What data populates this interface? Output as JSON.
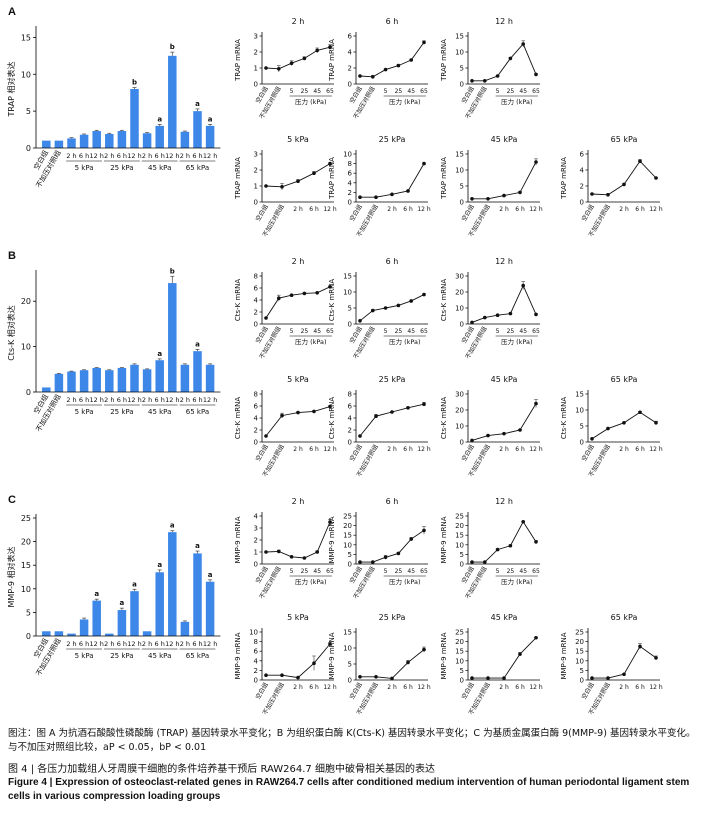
{
  "panels": {
    "A": "A",
    "B": "B",
    "C": "C"
  },
  "note": "图注：图 A 为抗酒石酸酸性磷酸酶 (TRAP) 基因转录水平变化；B 为组织蛋白酶 K(Cts-K) 基因转录水平变化；C 为基质金属蛋白酶 9(MMP-9) 基因转录水平变化。与不加压对照组比较，aP < 0.05，bP < 0.01",
  "title_cn": "图 4 | 各压力加载组人牙周膜干细胞的条件培养基干预后 RAW264.7 细胞中破骨相关基因的表达",
  "title_en": "Figure 4 | Expression of osteoclast-related genes in RAW264.7 cells after conditioned medium intervention of human periodontal ligament stem cells in various compression loading groups",
  "bar_style": {
    "bar_color": "#3d87e8",
    "axis_color": "#000000"
  },
  "chart_data": [
    {
      "type": "bar",
      "panel": "A",
      "ylabel": "TRAP 相对表达",
      "ylim": [
        0,
        16
      ],
      "yticks": [
        0,
        5,
        10,
        15
      ],
      "control_labels": [
        "空白组",
        "不加压对照组"
      ],
      "time_labels": [
        "2 h",
        "6 h",
        "12 h"
      ],
      "group_labels": [
        "5 kPa",
        "25 kPa",
        "45 kPa",
        "65 kPa"
      ],
      "values": [
        1.0,
        1.0,
        1.3,
        1.8,
        2.3,
        1.9,
        2.3,
        8.0,
        2.0,
        3.0,
        12.5,
        2.2,
        5.0,
        3.0
      ],
      "errors": [
        0.05,
        0.05,
        0.1,
        0.1,
        0.1,
        0.1,
        0.1,
        0.2,
        0.1,
        0.2,
        0.5,
        0.1,
        0.3,
        0.2
      ],
      "sig": [
        "",
        "",
        "",
        "",
        "",
        "",
        "",
        "b",
        "",
        "a",
        "b",
        "",
        "a",
        "a"
      ]
    },
    {
      "type": "bar",
      "panel": "B",
      "ylabel": "Cts-K 相对表达",
      "ylim": [
        0,
        26
      ],
      "yticks": [
        0,
        10,
        20
      ],
      "control_labels": [
        "空白组",
        "不加压对照组"
      ],
      "time_labels": [
        "2 h",
        "6 h",
        "12 h"
      ],
      "group_labels": [
        "5 kPa",
        "25 kPa",
        "45 kPa",
        "65 kPa"
      ],
      "values": [
        1.0,
        4.0,
        4.5,
        4.8,
        5.3,
        4.8,
        5.3,
        6.0,
        5.0,
        7.0,
        24.0,
        6.0,
        9.0,
        6.0
      ],
      "errors": [
        0.05,
        0.1,
        0.1,
        0.1,
        0.1,
        0.1,
        0.1,
        0.2,
        0.1,
        0.3,
        1.5,
        0.2,
        0.4,
        0.2
      ],
      "sig": [
        "",
        "",
        "",
        "",
        "",
        "",
        "",
        "",
        "",
        "a",
        "b",
        "",
        "a",
        ""
      ]
    },
    {
      "type": "bar",
      "panel": "C",
      "ylabel": "MMP-9 相对表达",
      "ylim": [
        0,
        25
      ],
      "yticks": [
        0,
        5,
        10,
        15,
        20,
        25
      ],
      "control_labels": [
        "空白组",
        "不加压对照组"
      ],
      "time_labels": [
        "2 h",
        "6 h",
        "12 h"
      ],
      "group_labels": [
        "5 kPa",
        "25 kPa",
        "45 kPa",
        "65 kPa"
      ],
      "values": [
        1.0,
        1.0,
        0.5,
        3.5,
        7.5,
        0.5,
        5.5,
        9.5,
        1.0,
        13.5,
        22.0,
        3.0,
        17.5,
        11.5
      ],
      "errors": [
        0.05,
        0.05,
        0.05,
        0.3,
        0.3,
        0.05,
        0.4,
        0.4,
        0.05,
        0.5,
        0.3,
        0.2,
        0.5,
        0.4
      ],
      "sig": [
        "",
        "",
        "",
        "",
        "a",
        "",
        "a",
        "a",
        "",
        "a",
        "a",
        "",
        "a",
        "a"
      ]
    },
    {
      "type": "line",
      "panel": "A",
      "title": "2 h",
      "ylabel": "TRAP mRNA",
      "x": [
        "空白组",
        "不加压对照组",
        "5",
        "25",
        "45",
        "65"
      ],
      "xlabel": "压力 (kPa)",
      "ylim": [
        0,
        3
      ],
      "yticks": [
        0,
        1,
        2,
        3
      ],
      "values": [
        1.0,
        0.95,
        1.3,
        1.6,
        2.1,
        2.3
      ],
      "errors": [
        0.05,
        0.2,
        0.15,
        0.1,
        0.15,
        0.15
      ]
    },
    {
      "type": "line",
      "panel": "A",
      "title": "6 h",
      "ylabel": "TRAP mRNA",
      "x": [
        "空白组",
        "不加压对照组",
        "5",
        "25",
        "45",
        "65"
      ],
      "xlabel": "压力 (kPa)",
      "ylim": [
        0,
        6
      ],
      "yticks": [
        0,
        2,
        4,
        6
      ],
      "values": [
        1.0,
        0.9,
        1.8,
        2.3,
        3.0,
        5.2
      ],
      "errors": [
        0.05,
        0.15,
        0.1,
        0.1,
        0.1,
        0.2
      ]
    },
    {
      "type": "line",
      "panel": "A",
      "title": "12 h",
      "ylabel": "TRAP mRNA",
      "x": [
        "空白组",
        "不加压对照组",
        "5",
        "25",
        "45",
        "65"
      ],
      "xlabel": "压力 (kPa)",
      "ylim": [
        0,
        15
      ],
      "yticks": [
        0,
        5,
        10,
        15
      ],
      "values": [
        1.0,
        1.0,
        2.5,
        8.0,
        12.5,
        3.0
      ],
      "errors": [
        0.05,
        0.1,
        0.1,
        0.3,
        1.0,
        0.2
      ]
    },
    {
      "type": "line",
      "panel": "A",
      "title": "5 kPa",
      "ylabel": "TRAP mRNA",
      "x": [
        "空白组",
        "不加压对照组",
        "2 h",
        "6 h",
        "12 h"
      ],
      "ylim": [
        0,
        3
      ],
      "yticks": [
        0,
        1,
        2,
        3
      ],
      "values": [
        1.0,
        0.95,
        1.3,
        1.8,
        2.4
      ],
      "errors": [
        0.05,
        0.2,
        0.1,
        0.1,
        0.05
      ]
    },
    {
      "type": "line",
      "panel": "A",
      "title": "25 kPa",
      "ylabel": "TRAP mRNA",
      "x": [
        "空白组",
        "不加压对照组",
        "2 h",
        "6 h",
        "12 h"
      ],
      "ylim": [
        0,
        10
      ],
      "yticks": [
        0,
        2,
        4,
        6,
        8,
        10
      ],
      "values": [
        1.0,
        1.0,
        1.6,
        2.3,
        8.0
      ],
      "errors": [
        0.05,
        0.1,
        0.1,
        0.1,
        0.1
      ]
    },
    {
      "type": "line",
      "panel": "A",
      "title": "45 kPa",
      "ylabel": "TRAP mRNA",
      "x": [
        "空白组",
        "不加压对照组",
        "2 h",
        "6 h",
        "12 h"
      ],
      "ylim": [
        0,
        15
      ],
      "yticks": [
        0,
        5,
        10,
        15
      ],
      "values": [
        1.0,
        1.0,
        2.0,
        3.0,
        12.5
      ],
      "errors": [
        0.05,
        0.1,
        0.1,
        0.2,
        1.0
      ]
    },
    {
      "type": "line",
      "panel": "A",
      "title": "65 kPa",
      "ylabel": "TRAP mRNA",
      "x": [
        "空白组",
        "不加压对照组",
        "2 h",
        "6 h",
        "12 h"
      ],
      "ylim": [
        0,
        6
      ],
      "yticks": [
        0,
        2,
        4,
        6
      ],
      "values": [
        1.0,
        0.9,
        2.2,
        5.1,
        3.0
      ],
      "errors": [
        0.05,
        0.15,
        0.1,
        0.2,
        0.1
      ]
    },
    {
      "type": "line",
      "panel": "B",
      "title": "2 h",
      "ylabel": "Cts-K mRNA",
      "x": [
        "空白组",
        "不加压对照组",
        "5",
        "25",
        "45",
        "65"
      ],
      "xlabel": "压力 (kPa)",
      "ylim": [
        0,
        8
      ],
      "yticks": [
        0,
        2,
        4,
        6,
        8
      ],
      "values": [
        1.0,
        4.3,
        4.8,
        5.1,
        5.2,
        6.2
      ],
      "errors": [
        0.05,
        0.5,
        0.1,
        0.1,
        0.1,
        0.1
      ]
    },
    {
      "type": "line",
      "panel": "B",
      "title": "6 h",
      "ylabel": "Cts-K mRNA",
      "x": [
        "空白组",
        "不加压对照组",
        "5",
        "25",
        "45",
        "65"
      ],
      "xlabel": "压力 (kPa)",
      "ylim": [
        0,
        15
      ],
      "yticks": [
        0,
        5,
        10,
        15
      ],
      "values": [
        1.0,
        4.2,
        5.0,
        5.8,
        7.2,
        9.2
      ],
      "errors": [
        0.05,
        0.3,
        0.1,
        0.1,
        0.1,
        0.2
      ]
    },
    {
      "type": "line",
      "panel": "B",
      "title": "12 h",
      "ylabel": "Cts-K mRNA",
      "x": [
        "空白组",
        "不加压对照组",
        "5",
        "25",
        "45",
        "65"
      ],
      "xlabel": "压力 (kPa)",
      "ylim": [
        0,
        30
      ],
      "yticks": [
        0,
        10,
        20,
        30
      ],
      "values": [
        1.0,
        4.0,
        5.5,
        6.5,
        24.0,
        6.0
      ],
      "errors": [
        0.05,
        0.2,
        0.2,
        0.2,
        2.5,
        0.3
      ]
    },
    {
      "type": "line",
      "panel": "B",
      "title": "5 kPa",
      "ylabel": "Cts-K mRNA",
      "x": [
        "空白组",
        "不加压对照组",
        "2 h",
        "6 h",
        "12 h"
      ],
      "ylim": [
        0,
        8
      ],
      "yticks": [
        0,
        2,
        4,
        6,
        8
      ],
      "values": [
        1.0,
        4.4,
        4.9,
        5.1,
        5.9
      ],
      "errors": [
        0.05,
        0.4,
        0.1,
        0.1,
        0.1
      ]
    },
    {
      "type": "line",
      "panel": "B",
      "title": "25 kPa",
      "ylabel": "Cts-K mRNA",
      "x": [
        "空白组",
        "不加压对照组",
        "2 h",
        "6 h",
        "12 h"
      ],
      "ylim": [
        0,
        8
      ],
      "yticks": [
        0,
        2,
        4,
        6,
        8
      ],
      "values": [
        1.0,
        4.3,
        5.0,
        5.7,
        6.3
      ],
      "errors": [
        0.05,
        0.3,
        0.1,
        0.1,
        0.3
      ]
    },
    {
      "type": "line",
      "panel": "B",
      "title": "45 kPa",
      "ylabel": "Cts-K mRNA",
      "x": [
        "空白组",
        "不加压对照组",
        "2 h",
        "6 h",
        "12 h"
      ],
      "ylim": [
        0,
        30
      ],
      "yticks": [
        0,
        10,
        20,
        30
      ],
      "values": [
        1.0,
        4.0,
        5.2,
        7.5,
        24.0
      ],
      "errors": [
        0.05,
        0.2,
        0.2,
        0.3,
        2.5
      ]
    },
    {
      "type": "line",
      "panel": "B",
      "title": "65 kPa",
      "ylabel": "Cts-K mRNA",
      "x": [
        "空白组",
        "不加压对照组",
        "2 h",
        "6 h",
        "12 h"
      ],
      "ylim": [
        0,
        15
      ],
      "yticks": [
        0,
        5,
        10,
        15
      ],
      "values": [
        1.0,
        4.2,
        6.0,
        9.3,
        6.0
      ],
      "errors": [
        0.05,
        0.3,
        0.2,
        0.3,
        0.5
      ]
    },
    {
      "type": "line",
      "panel": "C",
      "title": "2 h",
      "ylabel": "MMP-9 mRNA",
      "x": [
        "空白组",
        "不加压对照组",
        "5",
        "25",
        "45",
        "65"
      ],
      "xlabel": "压力 (kPa)",
      "ylim": [
        0,
        4
      ],
      "yticks": [
        0,
        1,
        2,
        3,
        4
      ],
      "values": [
        1.0,
        1.05,
        0.6,
        0.5,
        1.0,
        3.5
      ],
      "errors": [
        0.05,
        0.1,
        0.05,
        0.05,
        0.1,
        0.2
      ]
    },
    {
      "type": "line",
      "panel": "C",
      "title": "6 h",
      "ylabel": "MMP-9 mRNA",
      "x": [
        "空白组",
        "不加压对照组",
        "5",
        "25",
        "45",
        "65"
      ],
      "xlabel": "压力 (kPa)",
      "ylim": [
        0,
        25
      ],
      "yticks": [
        0,
        5,
        10,
        15,
        20,
        25
      ],
      "values": [
        1.0,
        1.0,
        3.5,
        5.5,
        13.0,
        17.5
      ],
      "errors": [
        0.05,
        0.05,
        1.0,
        0.5,
        0.8,
        2.0
      ]
    },
    {
      "type": "line",
      "panel": "C",
      "title": "12 h",
      "ylabel": "MMP-9 mRNA",
      "x": [
        "空白组",
        "不加压对照组",
        "5",
        "25",
        "45",
        "65"
      ],
      "xlabel": "压力 (kPa)",
      "ylim": [
        0,
        25
      ],
      "yticks": [
        0,
        5,
        10,
        15,
        20,
        25
      ],
      "values": [
        1.0,
        1.0,
        7.5,
        9.5,
        22.0,
        11.5
      ],
      "errors": [
        0.05,
        0.05,
        0.3,
        0.5,
        0.3,
        0.8
      ]
    },
    {
      "type": "line",
      "panel": "C",
      "title": "5 kPa",
      "ylabel": "MMP-9 mRNA",
      "x": [
        "空白组",
        "不加压对照组",
        "2 h",
        "6 h",
        "12 h"
      ],
      "ylim": [
        0,
        10
      ],
      "yticks": [
        0,
        2,
        4,
        6,
        8,
        10
      ],
      "values": [
        1.0,
        1.0,
        0.5,
        3.5,
        7.5
      ],
      "errors": [
        0.05,
        0.05,
        0.05,
        1.5,
        0.3
      ]
    },
    {
      "type": "line",
      "panel": "C",
      "title": "25 kPa",
      "ylabel": "MMP-9 mRNA",
      "x": [
        "空白组",
        "不加压对照组",
        "2 h",
        "6 h",
        "12 h"
      ],
      "ylim": [
        0,
        15
      ],
      "yticks": [
        0,
        5,
        10,
        15
      ],
      "values": [
        1.0,
        1.0,
        0.5,
        5.5,
        9.5
      ],
      "errors": [
        0.05,
        0.05,
        0.05,
        0.6,
        0.8
      ]
    },
    {
      "type": "line",
      "panel": "C",
      "title": "45 kPa",
      "ylabel": "MMP-9 mRNA",
      "x": [
        "空白组",
        "不加压对照组",
        "2 h",
        "6 h",
        "12 h"
      ],
      "ylim": [
        0,
        25
      ],
      "yticks": [
        0,
        5,
        10,
        15,
        20,
        25
      ],
      "values": [
        1.0,
        1.0,
        1.0,
        13.5,
        22.0
      ],
      "errors": [
        0.05,
        0.05,
        0.05,
        0.8,
        0.3
      ]
    },
    {
      "type": "line",
      "panel": "C",
      "title": "65 kPa",
      "ylabel": "MMP-9 mRNA",
      "x": [
        "空白组",
        "不加压对照组",
        "2 h",
        "6 h",
        "12 h"
      ],
      "ylim": [
        0,
        25
      ],
      "yticks": [
        0,
        5,
        10,
        15,
        20,
        25
      ],
      "values": [
        1.0,
        1.0,
        3.0,
        17.5,
        11.5
      ],
      "errors": [
        0.05,
        0.05,
        0.2,
        1.5,
        1.0
      ]
    }
  ]
}
